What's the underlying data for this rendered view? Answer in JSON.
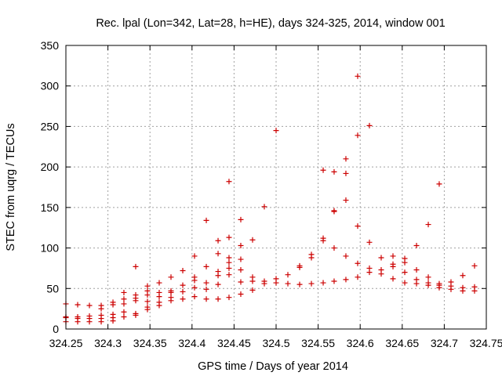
{
  "chart_data": {
    "type": "scatter",
    "title": "Rec. lpal (Lon=342, Lat=28, h=HE), days 324-325, 2014, window 001",
    "xlabel": "GPS time / Days of year 2014",
    "ylabel": "STEC from uqrg / TECUs",
    "xlim": [
      324.25,
      324.75
    ],
    "ylim": [
      0,
      350
    ],
    "xticks": [
      "324.25",
      "324.3",
      "324.35",
      "324.4",
      "324.45",
      "324.5",
      "324.55",
      "324.6",
      "324.65",
      "324.7",
      "324.75"
    ],
    "yticks": [
      "0",
      "50",
      "100",
      "150",
      "200",
      "250",
      "300",
      "350"
    ],
    "grid": true,
    "marker": "plus",
    "color": "#cc0000",
    "points": [
      [
        324.25,
        31
      ],
      [
        324.25,
        15
      ],
      [
        324.25,
        14
      ],
      [
        324.25,
        9
      ],
      [
        324.264,
        30
      ],
      [
        324.264,
        15
      ],
      [
        324.264,
        13
      ],
      [
        324.264,
        9
      ],
      [
        324.278,
        29
      ],
      [
        324.278,
        16
      ],
      [
        324.278,
        13
      ],
      [
        324.278,
        9
      ],
      [
        324.292,
        29
      ],
      [
        324.292,
        25
      ],
      [
        324.292,
        17
      ],
      [
        324.292,
        13
      ],
      [
        324.292,
        9
      ],
      [
        324.306,
        33
      ],
      [
        324.306,
        30
      ],
      [
        324.306,
        18
      ],
      [
        324.306,
        14
      ],
      [
        324.306,
        10
      ],
      [
        324.319,
        45
      ],
      [
        324.319,
        37
      ],
      [
        324.319,
        31
      ],
      [
        324.319,
        21
      ],
      [
        324.319,
        15
      ],
      [
        324.333,
        77
      ],
      [
        324.333,
        42
      ],
      [
        324.333,
        38
      ],
      [
        324.333,
        35
      ],
      [
        324.333,
        19
      ],
      [
        324.333,
        17
      ],
      [
        324.347,
        53
      ],
      [
        324.347,
        47
      ],
      [
        324.347,
        42
      ],
      [
        324.347,
        34
      ],
      [
        324.347,
        27
      ],
      [
        324.347,
        24
      ],
      [
        324.361,
        57
      ],
      [
        324.361,
        45
      ],
      [
        324.361,
        40
      ],
      [
        324.361,
        33
      ],
      [
        324.361,
        29
      ],
      [
        324.375,
        64
      ],
      [
        324.375,
        47
      ],
      [
        324.375,
        45
      ],
      [
        324.375,
        39
      ],
      [
        324.375,
        35
      ],
      [
        324.389,
        72
      ],
      [
        324.389,
        54
      ],
      [
        324.389,
        46
      ],
      [
        324.389,
        37
      ],
      [
        324.403,
        90
      ],
      [
        324.403,
        64
      ],
      [
        324.403,
        60
      ],
      [
        324.403,
        51
      ],
      [
        324.403,
        40
      ],
      [
        324.417,
        134
      ],
      [
        324.417,
        77
      ],
      [
        324.417,
        57
      ],
      [
        324.417,
        49
      ],
      [
        324.417,
        37
      ],
      [
        324.431,
        109
      ],
      [
        324.431,
        93
      ],
      [
        324.431,
        71
      ],
      [
        324.431,
        66
      ],
      [
        324.431,
        55
      ],
      [
        324.431,
        37
      ],
      [
        324.444,
        182
      ],
      [
        324.444,
        113
      ],
      [
        324.444,
        88
      ],
      [
        324.444,
        82
      ],
      [
        324.444,
        75
      ],
      [
        324.444,
        67
      ],
      [
        324.444,
        39
      ],
      [
        324.458,
        135
      ],
      [
        324.458,
        103
      ],
      [
        324.458,
        86
      ],
      [
        324.458,
        73
      ],
      [
        324.458,
        58
      ],
      [
        324.458,
        43
      ],
      [
        324.472,
        110
      ],
      [
        324.472,
        64
      ],
      [
        324.472,
        59
      ],
      [
        324.472,
        48
      ],
      [
        324.486,
        151
      ],
      [
        324.486,
        59
      ],
      [
        324.486,
        56
      ],
      [
        324.5,
        245
      ],
      [
        324.5,
        62
      ],
      [
        324.5,
        57
      ],
      [
        324.514,
        67
      ],
      [
        324.514,
        56
      ],
      [
        324.528,
        78
      ],
      [
        324.528,
        76
      ],
      [
        324.528,
        55
      ],
      [
        324.542,
        92
      ],
      [
        324.542,
        88
      ],
      [
        324.542,
        56
      ],
      [
        324.556,
        196
      ],
      [
        324.556,
        112
      ],
      [
        324.556,
        109
      ],
      [
        324.556,
        57
      ],
      [
        324.569,
        194
      ],
      [
        324.569,
        146
      ],
      [
        324.569,
        145
      ],
      [
        324.569,
        100
      ],
      [
        324.569,
        59
      ],
      [
        324.583,
        210
      ],
      [
        324.583,
        192
      ],
      [
        324.583,
        159
      ],
      [
        324.583,
        90
      ],
      [
        324.583,
        61
      ],
      [
        324.597,
        312
      ],
      [
        324.597,
        239
      ],
      [
        324.597,
        127
      ],
      [
        324.597,
        81
      ],
      [
        324.597,
        64
      ],
      [
        324.611,
        251
      ],
      [
        324.611,
        107
      ],
      [
        324.611,
        75
      ],
      [
        324.611,
        70
      ],
      [
        324.625,
        88
      ],
      [
        324.625,
        73
      ],
      [
        324.625,
        68
      ],
      [
        324.639,
        90
      ],
      [
        324.639,
        80
      ],
      [
        324.639,
        77
      ],
      [
        324.639,
        62
      ],
      [
        324.653,
        87
      ],
      [
        324.653,
        82
      ],
      [
        324.653,
        70
      ],
      [
        324.653,
        57
      ],
      [
        324.667,
        103
      ],
      [
        324.667,
        73
      ],
      [
        324.667,
        61
      ],
      [
        324.667,
        56
      ],
      [
        324.681,
        129
      ],
      [
        324.681,
        64
      ],
      [
        324.681,
        57
      ],
      [
        324.681,
        54
      ],
      [
        324.694,
        179
      ],
      [
        324.694,
        56
      ],
      [
        324.694,
        54
      ],
      [
        324.694,
        51
      ],
      [
        324.708,
        58
      ],
      [
        324.708,
        53
      ],
      [
        324.708,
        49
      ],
      [
        324.722,
        66
      ],
      [
        324.722,
        51
      ],
      [
        324.722,
        47
      ],
      [
        324.736,
        78
      ],
      [
        324.736,
        52
      ],
      [
        324.736,
        47
      ]
    ]
  }
}
